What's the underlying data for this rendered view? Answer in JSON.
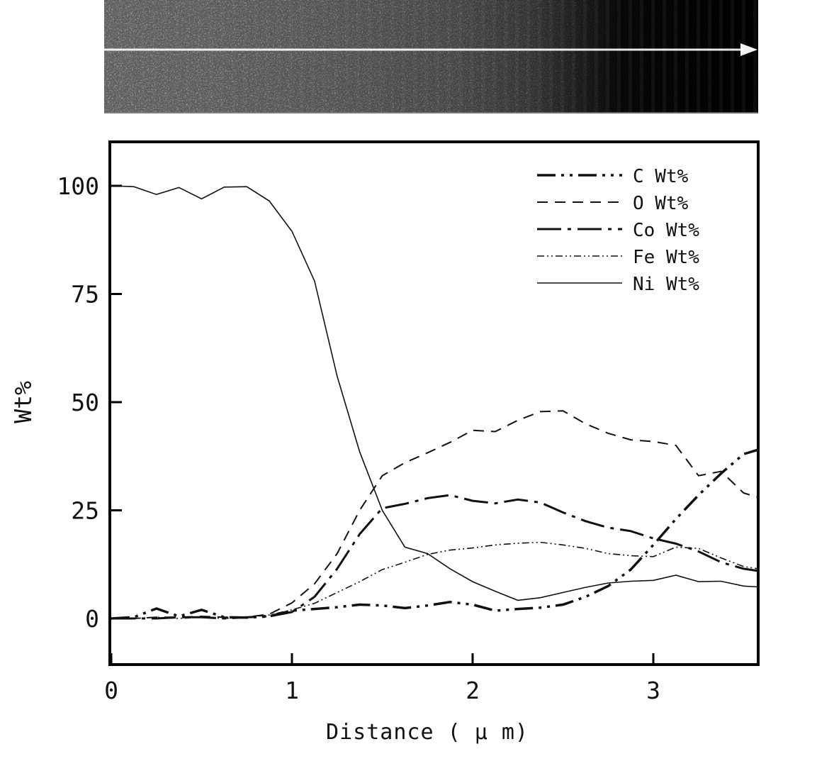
{
  "figure": {
    "description": "EDS line-scan figure: SEM micrograph strip with scan-line arrow above an elemental composition profile chart",
    "scan_image": {
      "kind": "sem-micrograph-strip",
      "gradient_stops": [
        "#cacaca",
        "#c3c3c3",
        "#aeaeae",
        "#929292",
        "#6a6a6a",
        "#383838",
        "#101010",
        "#000000"
      ],
      "scan_line_color": "#ffffff"
    }
  },
  "chart_data": {
    "type": "line",
    "title": "",
    "xlabel": "Distance ( μ m)",
    "ylabel": "Wt%",
    "xlim": [
      0,
      3.6
    ],
    "ylim": [
      -10.7,
      110.2
    ],
    "xticks": [
      "0",
      "1",
      "2",
      "3"
    ],
    "xtick_values": [
      0,
      1,
      2,
      3
    ],
    "yticks": [
      "0",
      "25",
      "50",
      "75",
      "100"
    ],
    "ytick_values": [
      0,
      25,
      50,
      75,
      100
    ],
    "grid": false,
    "legend_position": "top-right",
    "line_color": "#111111",
    "x": [
      0,
      0.125,
      0.25,
      0.375,
      0.5,
      0.625,
      0.75,
      0.875,
      1,
      1.125,
      1.25,
      1.375,
      1.5,
      1.625,
      1.75,
      1.875,
      2,
      2.125,
      2.25,
      2.375,
      2.5,
      2.625,
      2.75,
      2.875,
      3,
      3.125,
      3.25,
      3.375,
      3.5,
      3.58
    ],
    "series": [
      {
        "name": "C Wt%",
        "line_style": "dash-dot-dot",
        "values": [
          0,
          0.3,
          2.3,
          0.5,
          2,
          0.3,
          0.2,
          0.5,
          1.8,
          2.2,
          2.6,
          3.2,
          3,
          2.4,
          3,
          3.8,
          3.2,
          1.8,
          2.2,
          2.5,
          3.2,
          5,
          7.5,
          11.3,
          17,
          23,
          28.5,
          33.5,
          38,
          39
        ]
      },
      {
        "name": "O Wt%",
        "line_style": "dash",
        "values": [
          0,
          0,
          0.3,
          0.3,
          0.5,
          0.3,
          0.3,
          1,
          3.6,
          8,
          15,
          25,
          33,
          36,
          38.3,
          40.7,
          43.5,
          43.2,
          45.8,
          47.8,
          48,
          45,
          42.8,
          41.3,
          40.9,
          40,
          33,
          34,
          29,
          28
        ]
      },
      {
        "name": "Co Wt%",
        "line_style": "dash-dot",
        "values": [
          0,
          0,
          0,
          0.3,
          0.3,
          0,
          0.3,
          0.5,
          1.5,
          5,
          11.5,
          19.5,
          25.5,
          26.5,
          27.8,
          28.5,
          27.2,
          26.6,
          27.5,
          26.8,
          24.5,
          22.5,
          21,
          20.2,
          18.5,
          17.3,
          15.5,
          13,
          11.5,
          11
        ]
      },
      {
        "name": "Fe Wt%",
        "line_style": "fine-dot",
        "values": [
          0,
          0,
          0.3,
          0,
          0.3,
          0,
          0.3,
          0.8,
          2,
          3.5,
          6,
          8.5,
          11.3,
          13,
          14.8,
          15.8,
          16.3,
          17,
          17.4,
          17.6,
          17,
          16.2,
          15,
          14.5,
          14.3,
          16.5,
          16.2,
          14,
          12,
          11.5
        ]
      },
      {
        "name": "Ni Wt%",
        "line_style": "solid",
        "values": [
          100,
          99.8,
          98,
          99.6,
          97,
          99.7,
          99.8,
          96.5,
          89.5,
          78,
          56,
          38.5,
          25,
          16.5,
          15,
          11.5,
          8.5,
          6.3,
          4.2,
          4.8,
          6,
          7.2,
          8.2,
          8.6,
          8.8,
          10,
          8.5,
          8.6,
          7.5,
          7.3
        ]
      }
    ]
  }
}
